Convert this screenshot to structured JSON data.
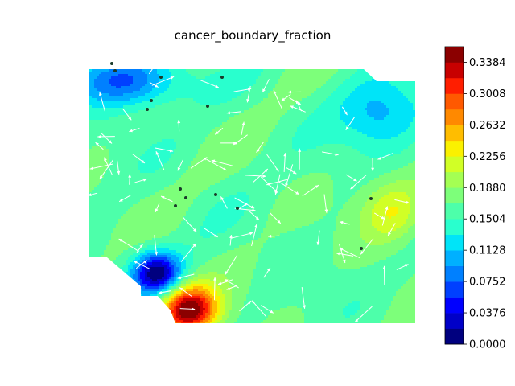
{
  "chart_data": {
    "type": "heatmap",
    "subtype": "filled-contour with quiver arrows and scatter markers",
    "title": "cancer_boundary_fraction",
    "xlabel": "",
    "ylabel": "",
    "axes_visible": false,
    "grid": false,
    "colormap": "jet",
    "colorbar": {
      "placement": "right",
      "vmin": 0.0,
      "vmax": 0.3572,
      "levels": [
        0.0,
        0.0188,
        0.0376,
        0.0564,
        0.0752,
        0.094,
        0.1128,
        0.1316,
        0.1504,
        0.1692,
        0.188,
        0.2068,
        0.2256,
        0.2444,
        0.2632,
        0.282,
        0.3008,
        0.3196,
        0.3384,
        0.3572
      ],
      "tick_labels": [
        "0.0000",
        "0.0376",
        "0.0752",
        "0.1128",
        "0.1504",
        "0.1880",
        "0.2256",
        "0.2632",
        "0.3008",
        "0.3384"
      ],
      "colors": [
        "#00007f",
        "#0000c8",
        "#0000ff",
        "#0040ff",
        "#0080ff",
        "#00b0ff",
        "#00e4f8",
        "#29ffce",
        "#4dffaa",
        "#7dff7a",
        "#a4ff53",
        "#d1ff26",
        "#fbf100",
        "#ffbd00",
        "#ff8900",
        "#ff5900",
        "#ff1e00",
        "#c80000",
        "#8b0000"
      ]
    },
    "field_peaks": [
      {
        "label": "upper-left low",
        "value": 0.07
      },
      {
        "label": "upper-right low",
        "value": 0.1
      },
      {
        "label": "lower-left high",
        "value": 0.357
      },
      {
        "label": "lower-left low",
        "value": 0.01
      },
      {
        "label": "right-middle high",
        "value": 0.225
      },
      {
        "label": "background",
        "value": 0.165
      }
    ],
    "quiver": {
      "color": "#ffffff",
      "count": 110
    },
    "scatter": {
      "color": "#1a3a2a",
      "count": 14
    }
  }
}
